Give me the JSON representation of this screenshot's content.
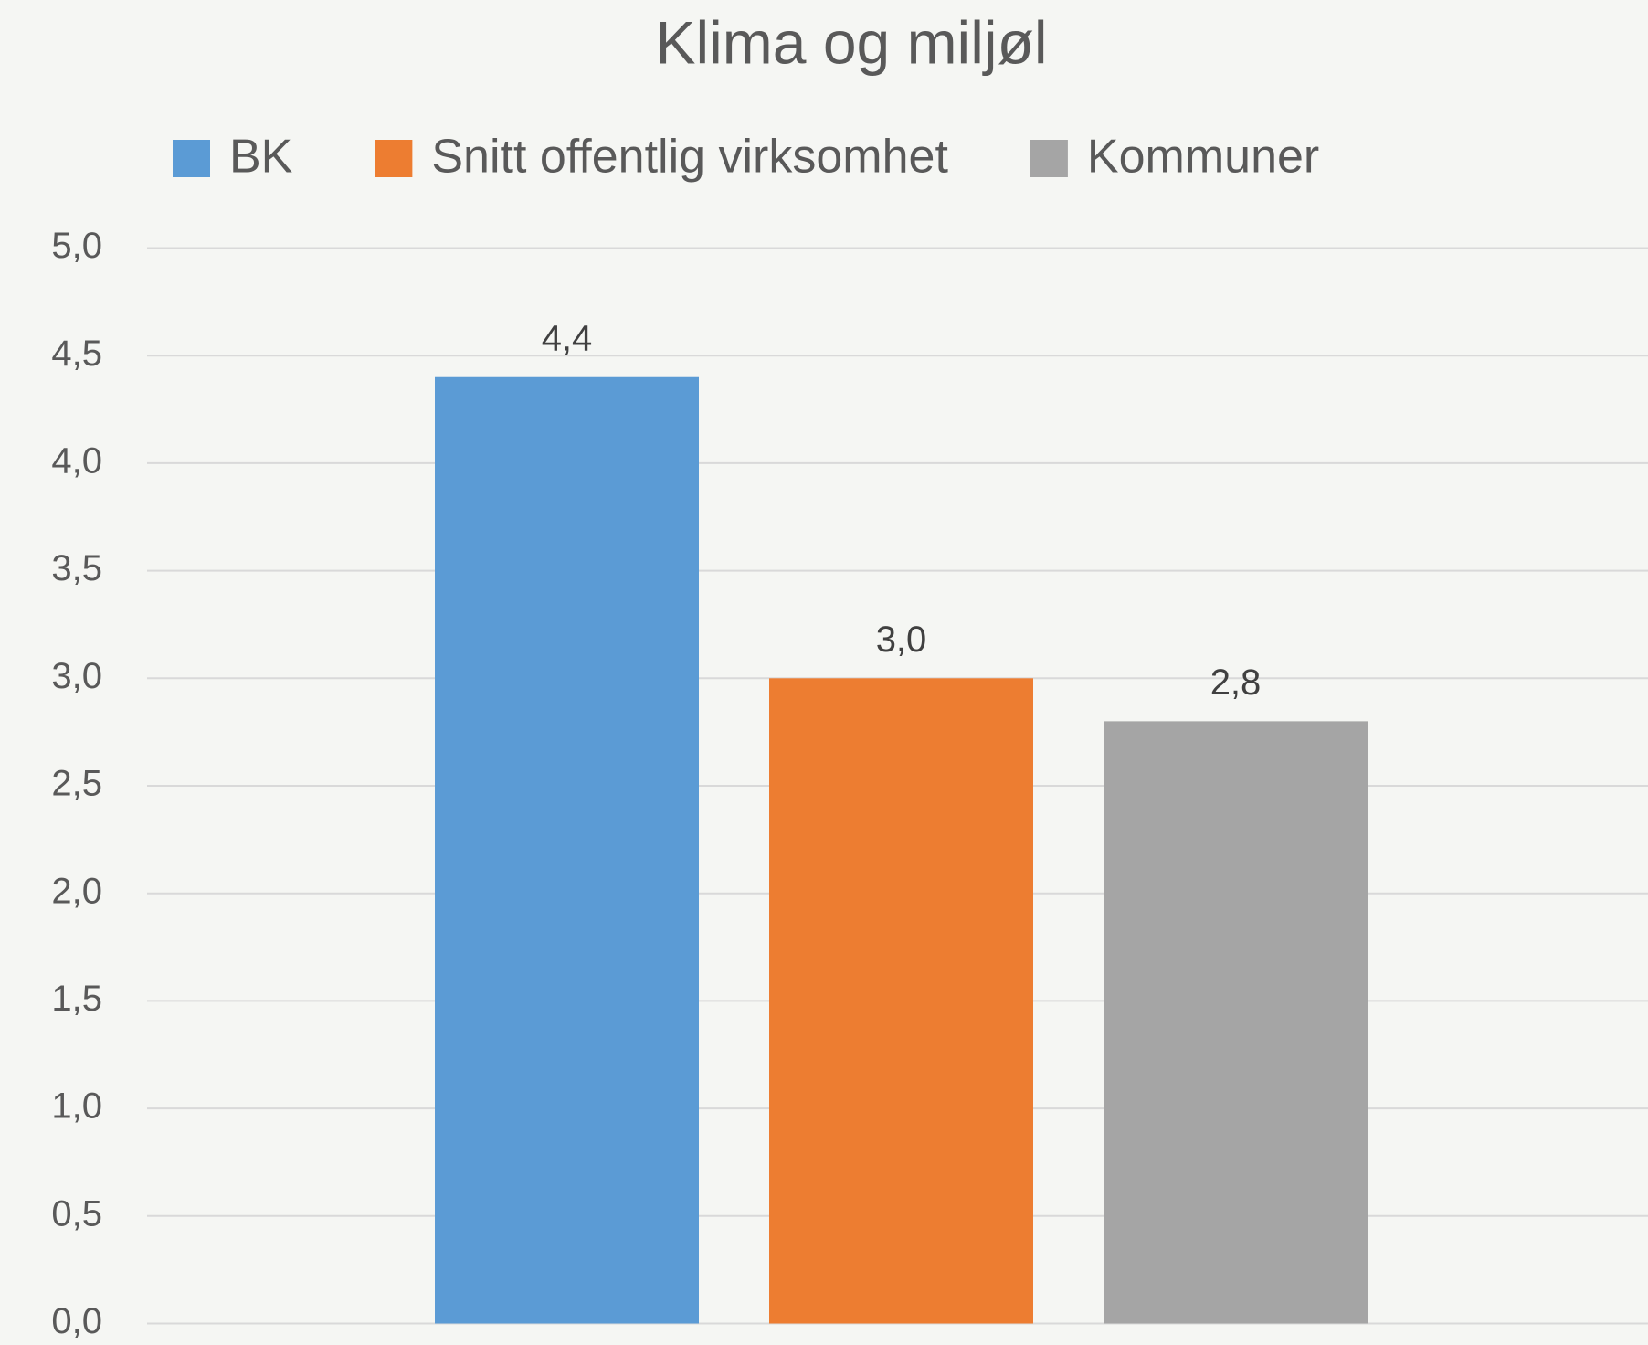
{
  "chart_data": {
    "type": "bar",
    "title": "Klima og miljøl",
    "categories": [
      null
    ],
    "series": [
      {
        "name": "BK",
        "color": "#5b9bd5",
        "values": [
          4.4
        ],
        "value_labels": [
          "4,4"
        ]
      },
      {
        "name": "Snitt offentlig virksomhet",
        "color": "#ed7d31",
        "values": [
          3.0
        ],
        "value_labels": [
          "3,0"
        ]
      },
      {
        "name": "Kommuner",
        "color": "#a5a5a5",
        "values": [
          2.8
        ],
        "value_labels": [
          "2,8"
        ]
      }
    ],
    "ylim": [
      0,
      5
    ],
    "yticks": [
      {
        "value": 0,
        "label": "0,0"
      },
      {
        "value": 0.5,
        "label": "0,5"
      },
      {
        "value": 1,
        "label": "1,0"
      },
      {
        "value": 1.5,
        "label": "1,5"
      },
      {
        "value": 2,
        "label": "2,0"
      },
      {
        "value": 2.5,
        "label": "2,5"
      },
      {
        "value": 3,
        "label": "3,0"
      },
      {
        "value": 3.5,
        "label": "3,5"
      },
      {
        "value": 4,
        "label": "4,0"
      },
      {
        "value": 4.5,
        "label": "4,5"
      },
      {
        "value": 5,
        "label": "5,0"
      }
    ],
    "grid": true,
    "legend": "top"
  }
}
